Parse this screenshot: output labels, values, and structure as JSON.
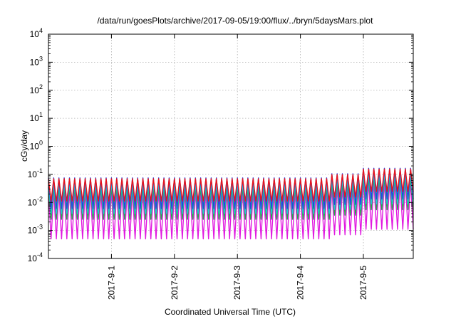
{
  "chart_data": {
    "type": "line",
    "title": "/data/run/goesPlots/archive/2017-09-05/19:00/flux/../bryn/5daysMars.plot",
    "xlabel": "Coordinated Universal Time (UTC)",
    "ylabel": "cGy/day",
    "yscale": "log",
    "ylim": [
      0.0001,
      10000
    ],
    "xlim": [
      "2017-08-31T00:00",
      "2017-09-05T19:00"
    ],
    "grid": true,
    "y_ticks": [
      {
        "base": "10",
        "exp": "-4"
      },
      {
        "base": "10",
        "exp": "-3"
      },
      {
        "base": "10",
        "exp": "-2"
      },
      {
        "base": "10",
        "exp": "-1"
      },
      {
        "base": "10",
        "exp": "0"
      },
      {
        "base": "10",
        "exp": "1"
      },
      {
        "base": "10",
        "exp": "2"
      },
      {
        "base": "10",
        "exp": "3"
      },
      {
        "base": "10",
        "exp": "4"
      }
    ],
    "x_ticks": [
      {
        "date": "2017-09-01",
        "label": "2017-9-1"
      },
      {
        "date": "2017-09-02",
        "label": "2017-9-2"
      },
      {
        "date": "2017-09-03",
        "label": "2017-9-3"
      },
      {
        "date": "2017-09-04",
        "label": "2017-9-4"
      },
      {
        "date": "2017-09-05",
        "label": "2017-9-5"
      }
    ],
    "pattern": {
      "period_hours": 2,
      "base_period_hours": 2,
      "after": "2017-09-04T12:00",
      "enhancement_factor_after": 1.4,
      "enhancement_start": "2017-09-05T00:00",
      "enhancement_factor_final": 2.2
    },
    "series": [
      {
        "color": "#e8141b",
        "peak": 0.07,
        "trough": 0.011
      },
      {
        "color": "#2a3fe0",
        "peak": 0.075,
        "trough": 0.006
      },
      {
        "color": "#1fc9d6",
        "peak": 0.05,
        "trough": 0.004
      },
      {
        "color": "#27a84a",
        "peak": 0.035,
        "trough": 0.0025
      },
      {
        "color": "#e11be0",
        "peak": 0.025,
        "trough": 0.0005
      }
    ]
  }
}
